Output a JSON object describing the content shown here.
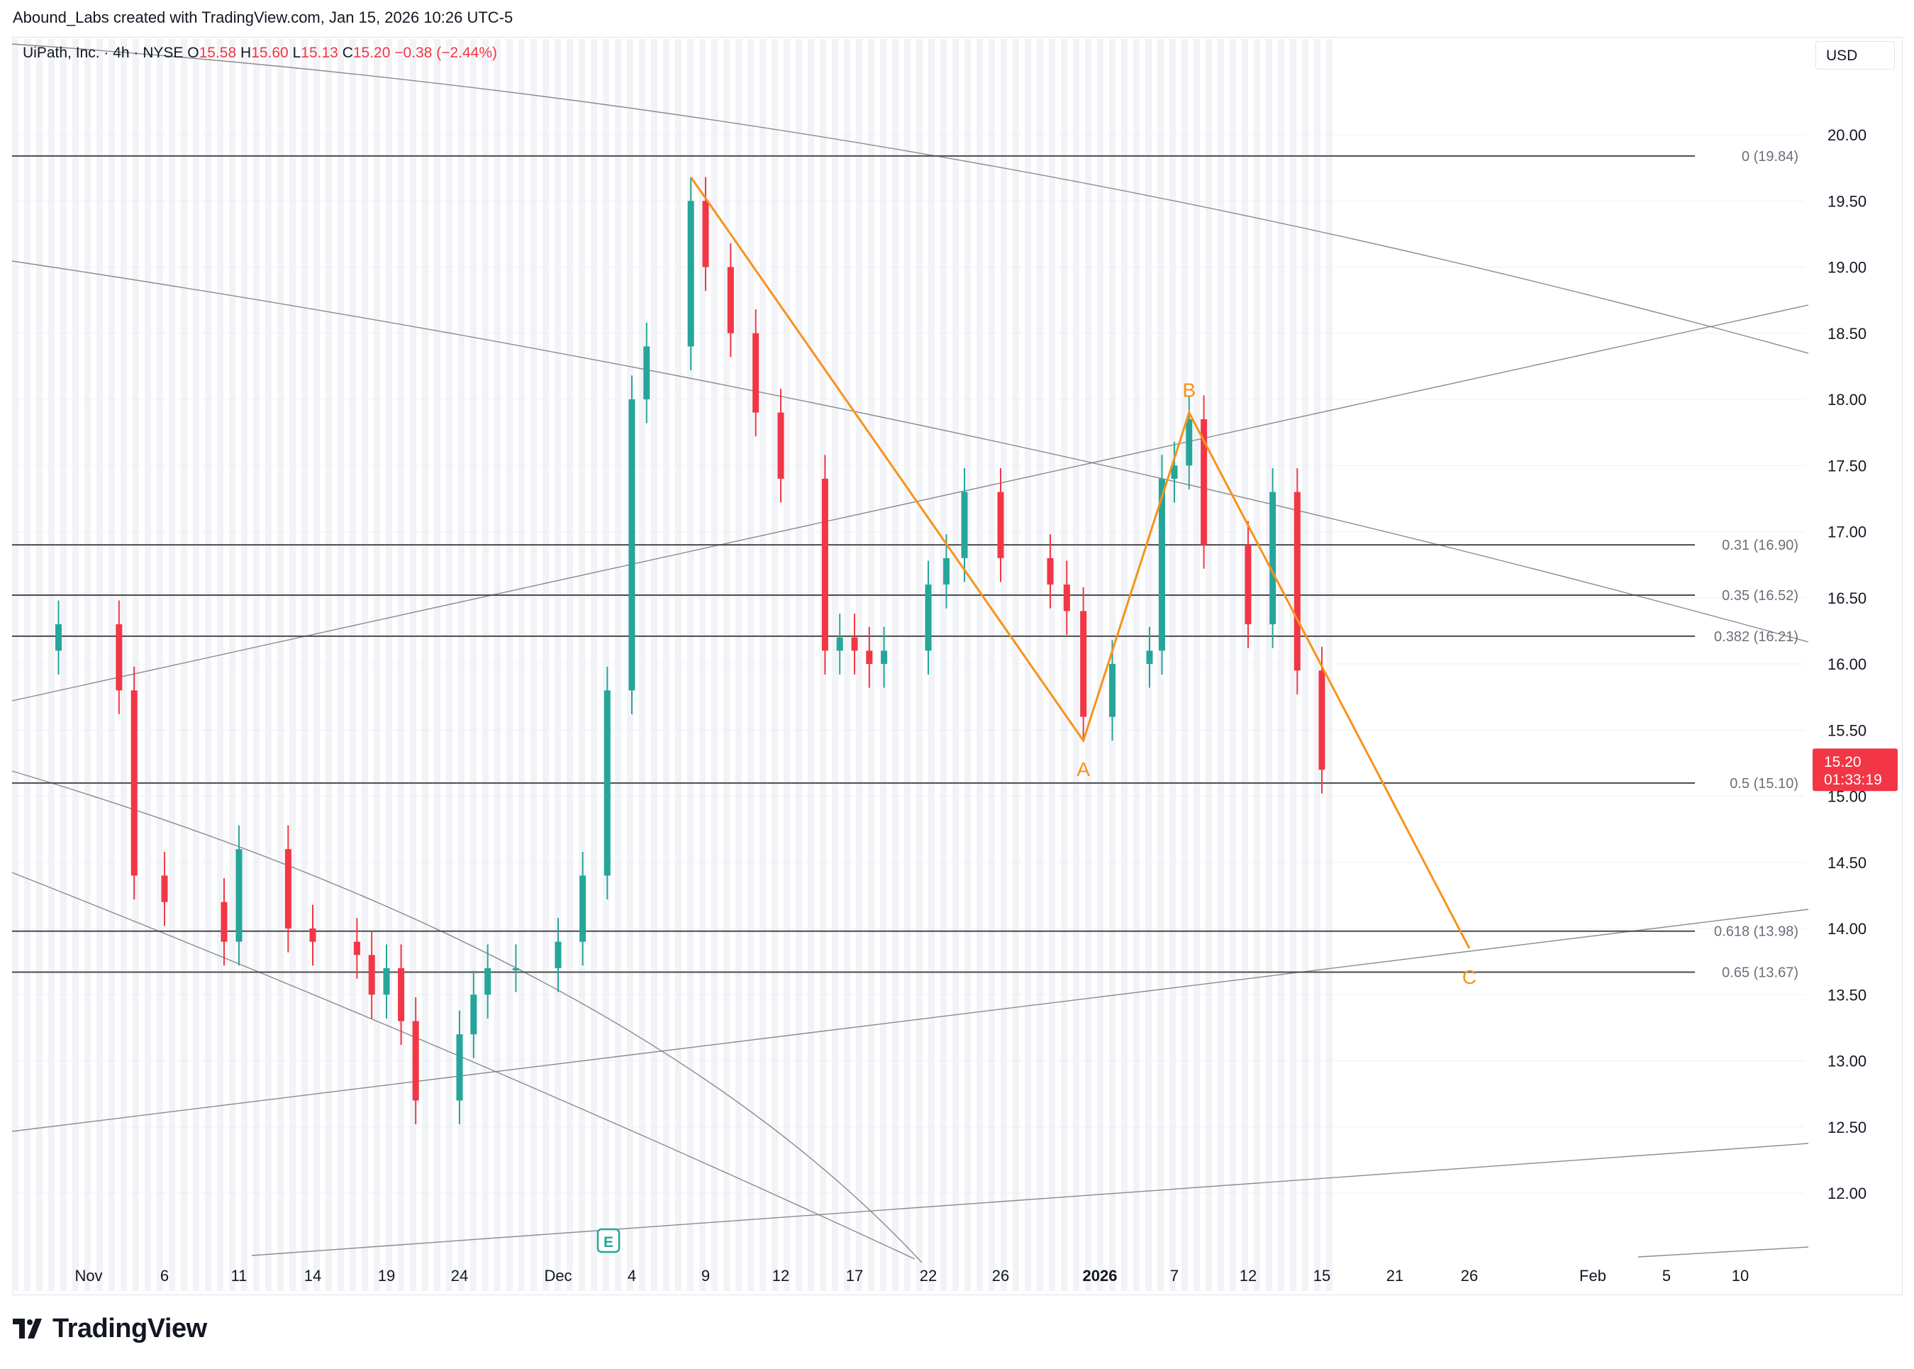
{
  "header": {
    "credit": "Abound_Labs created with TradingView.com, Jan 15, 2026 10:26 UTC-5"
  },
  "legend": {
    "symbol": "UiPath, Inc. · 4h · NYSE",
    "o_label": "O",
    "o_value": "15.58",
    "h_label": "H",
    "h_value": "15.60",
    "l_label": "L",
    "l_value": "15.13",
    "c_label": "C",
    "c_value": "15.20",
    "change": "−0.38 (−2.44%)"
  },
  "currency": "USD",
  "brand": {
    "name": "TradingView"
  },
  "colors": {
    "up": "#26a69a",
    "down": "#f23645",
    "wave": "#f7931a",
    "level": "#4a4a4a",
    "channel": "#777777"
  },
  "price_label": {
    "price": "15.20",
    "countdown": "01:33:19"
  },
  "earnings_marker": "E",
  "chart_data": {
    "type": "candlestick",
    "symbol": "UiPath, Inc.",
    "interval": "4h",
    "exchange": "NYSE",
    "currency": "USD",
    "y_axis": {
      "ticks": [
        "12.00",
        "12.50",
        "13.00",
        "13.50",
        "14.00",
        "14.50",
        "15.00",
        "15.50",
        "16.00",
        "16.50",
        "17.00",
        "17.50",
        "18.00",
        "18.50",
        "19.00",
        "19.50",
        "20.00"
      ],
      "ylim": [
        11.5,
        20.5
      ]
    },
    "x_axis": {
      "ticks": [
        "Nov",
        "6",
        "11",
        "14",
        "19",
        "24",
        "Dec",
        "4",
        "9",
        "12",
        "17",
        "22",
        "26",
        "2026",
        "7",
        "12",
        "15",
        "21",
        "26",
        "Feb",
        "5",
        "10"
      ]
    },
    "fib_levels": [
      {
        "label": "0 (19.84)",
        "value": 19.84
      },
      {
        "label": "0.31 (16.90)",
        "value": 16.9
      },
      {
        "label": "0.35 (16.52)",
        "value": 16.52
      },
      {
        "label": "0.382 (16.21)",
        "value": 16.21
      },
      {
        "label": "0.5 (15.10)",
        "value": 15.1
      },
      {
        "label": "0.618 (13.98)",
        "value": 13.98
      },
      {
        "label": "0.65 (13.67)",
        "value": 13.67
      }
    ],
    "wave_points": [
      {
        "label": "",
        "date": "Dec 8",
        "price": 19.68
      },
      {
        "label": "A",
        "date": "Dec 31",
        "price": 15.42
      },
      {
        "label": "B",
        "date": "Jan 8",
        "price": 17.9
      },
      {
        "label": "C",
        "date": "Jan 26",
        "price": 13.85
      }
    ],
    "candles_approx": [
      {
        "date": "Oct 30",
        "c": 16.3
      },
      {
        "date": "Nov 3",
        "c": 15.8
      },
      {
        "date": "Nov 4",
        "c": 14.4
      },
      {
        "date": "Nov 6",
        "c": 14.2
      },
      {
        "date": "Nov 10",
        "c": 13.9
      },
      {
        "date": "Nov 11",
        "c": 14.6
      },
      {
        "date": "Nov 13",
        "c": 14.0
      },
      {
        "date": "Nov 14",
        "c": 13.9
      },
      {
        "date": "Nov 17",
        "c": 13.8
      },
      {
        "date": "Nov 18",
        "c": 13.5
      },
      {
        "date": "Nov 19",
        "c": 13.7
      },
      {
        "date": "Nov 20",
        "c": 13.3
      },
      {
        "date": "Nov 21",
        "c": 12.7
      },
      {
        "date": "Nov 24",
        "c": 13.2
      },
      {
        "date": "Nov 25",
        "c": 13.5
      },
      {
        "date": "Nov 26",
        "c": 13.7
      },
      {
        "date": "Nov 28",
        "c": 13.7
      },
      {
        "date": "Dec 1",
        "c": 13.9
      },
      {
        "date": "Dec 2",
        "c": 14.4
      },
      {
        "date": "Dec 3",
        "c": 15.8
      },
      {
        "date": "Dec 4",
        "c": 18.0
      },
      {
        "date": "Dec 5",
        "c": 18.4
      },
      {
        "date": "Dec 8",
        "c": 19.5
      },
      {
        "date": "Dec 9",
        "c": 19.0
      },
      {
        "date": "Dec 10",
        "c": 18.5
      },
      {
        "date": "Dec 11",
        "c": 17.9
      },
      {
        "date": "Dec 12",
        "c": 17.4
      },
      {
        "date": "Dec 15",
        "c": 16.1
      },
      {
        "date": "Dec 16",
        "c": 16.2
      },
      {
        "date": "Dec 17",
        "c": 16.1
      },
      {
        "date": "Dec 18",
        "c": 16.0
      },
      {
        "date": "Dec 19",
        "c": 16.1
      },
      {
        "date": "Dec 22",
        "c": 16.6
      },
      {
        "date": "Dec 23",
        "c": 16.8
      },
      {
        "date": "Dec 24",
        "c": 17.3
      },
      {
        "date": "Dec 26",
        "c": 16.8
      },
      {
        "date": "Dec 29",
        "c": 16.6
      },
      {
        "date": "Dec 30",
        "c": 16.4
      },
      {
        "date": "Dec 31",
        "c": 15.6
      },
      {
        "date": "Jan 2",
        "c": 16.0
      },
      {
        "date": "Jan 5",
        "c": 16.1
      },
      {
        "date": "Jan 6",
        "c": 17.4
      },
      {
        "date": "Jan 7",
        "c": 17.5
      },
      {
        "date": "Jan 8",
        "c": 17.85
      },
      {
        "date": "Jan 9",
        "c": 16.9
      },
      {
        "date": "Jan 12",
        "c": 16.3
      },
      {
        "date": "Jan 13",
        "c": 17.3
      },
      {
        "date": "Jan 14",
        "c": 15.95
      },
      {
        "date": "Jan 15",
        "c": 15.2
      }
    ]
  }
}
